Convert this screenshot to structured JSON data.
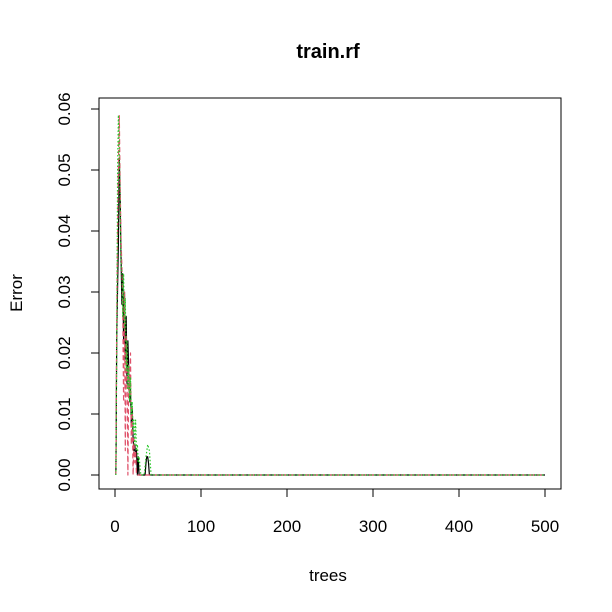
{
  "chart_data": {
    "type": "line",
    "title": "train.rf",
    "xlabel": "trees",
    "ylabel": "Error",
    "xlim": [
      0,
      500
    ],
    "ylim": [
      0,
      0.06
    ],
    "x_ticks": [
      "0",
      "100",
      "200",
      "300",
      "400",
      "500"
    ],
    "y_ticks": [
      "0.00",
      "0.01",
      "0.02",
      "0.03",
      "0.04",
      "0.05",
      "0.06"
    ],
    "grid": false,
    "legend": "none",
    "series": [
      {
        "color": "#000000",
        "dash": "solid",
        "x": [
          1,
          2,
          3,
          4,
          5,
          6,
          7,
          8,
          9,
          10,
          11,
          12,
          13,
          14,
          15,
          16,
          17,
          18,
          19,
          20,
          21,
          22,
          23,
          24,
          25,
          26,
          27,
          28,
          29,
          30,
          31,
          32,
          33,
          34,
          35,
          36,
          37,
          38,
          39,
          40,
          42,
          500
        ],
        "y": [
          0.0,
          0.022,
          0.031,
          0.038,
          0.052,
          0.045,
          0.036,
          0.028,
          0.033,
          0.022,
          0.03,
          0.019,
          0.026,
          0.015,
          0.022,
          0.017,
          0.012,
          0.014,
          0.008,
          0.011,
          0.006,
          0.004,
          0.005,
          0.003,
          0.004,
          0.0,
          0.003,
          0.0,
          0.0,
          0.0,
          0.0,
          0.0,
          0.0,
          0.0,
          0.0,
          0.002,
          0.003,
          0.003,
          0.002,
          0.0,
          0.0,
          0.0
        ]
      },
      {
        "color": "#df536b",
        "dash": "dashed",
        "x": [
          1,
          2,
          3,
          4,
          5,
          6,
          7,
          8,
          9,
          10,
          11,
          12,
          13,
          14,
          15,
          16,
          17,
          18,
          19,
          20,
          21,
          22,
          23,
          24,
          25,
          26,
          27,
          28,
          500
        ],
        "y": [
          0.0,
          0.025,
          0.04,
          0.051,
          0.059,
          0.047,
          0.039,
          0.034,
          0.028,
          0.012,
          0.03,
          0.004,
          0.023,
          0.017,
          0.0,
          0.018,
          0.013,
          0.02,
          0.005,
          0.011,
          0.0,
          0.006,
          0.002,
          0.004,
          0.0,
          0.0,
          0.0,
          0.0,
          0.0
        ]
      },
      {
        "color": "#28c828",
        "dash": "dotted",
        "x": [
          1,
          2,
          3,
          4,
          5,
          6,
          7,
          8,
          9,
          10,
          11,
          12,
          13,
          14,
          15,
          16,
          17,
          18,
          19,
          20,
          21,
          22,
          23,
          24,
          25,
          26,
          27,
          28,
          30,
          32,
          34,
          36,
          38,
          40,
          42,
          44,
          500
        ],
        "y": [
          0.0,
          0.019,
          0.05,
          0.059,
          0.054,
          0.043,
          0.035,
          0.033,
          0.026,
          0.033,
          0.024,
          0.029,
          0.017,
          0.022,
          0.014,
          0.018,
          0.012,
          0.016,
          0.01,
          0.012,
          0.007,
          0.009,
          0.005,
          0.009,
          0.004,
          0.005,
          0.002,
          0.003,
          0.0,
          0.0,
          0.0,
          0.003,
          0.005,
          0.004,
          0.0,
          0.0,
          0.0
        ]
      }
    ]
  }
}
